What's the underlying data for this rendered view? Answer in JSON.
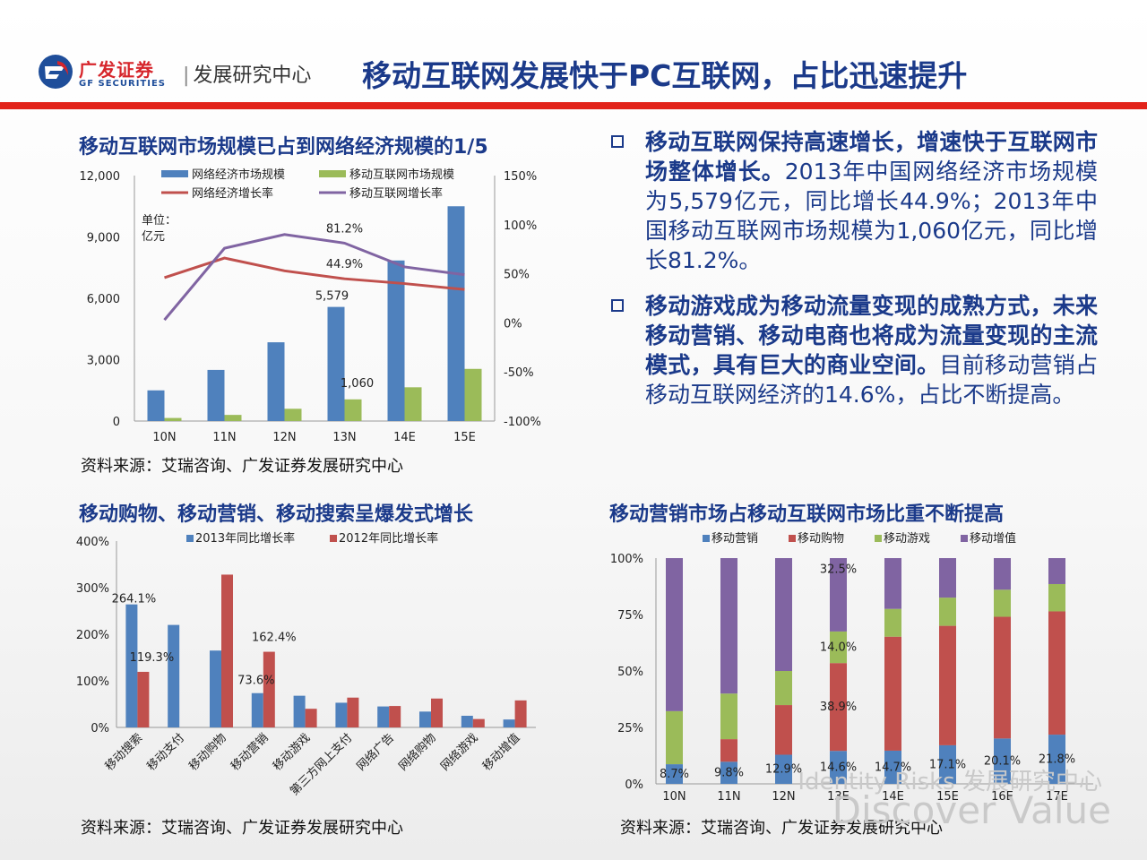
{
  "header": {
    "logo_cn": "广发证券",
    "logo_en": "GF SECURITIES",
    "dept": "发展研究中心",
    "title": "移动互联网发展快于PC互联网，占比迅速提升"
  },
  "colors": {
    "blue": "#4f81bd",
    "red": "#c0504d",
    "green": "#9bbb59",
    "purple": "#8064a2",
    "navy": "#1b3a8a",
    "brand_red": "#e2231a"
  },
  "chart1_title": "移动互联网市场规模已占到网络经济规模的1/5",
  "chart1_source": "资料来源：艾瑞咨询、广发证券发展研究中心",
  "chart2_title": "移动购物、移动营销、移动搜索呈爆发式增长",
  "chart2_source": "资料来源：艾瑞咨询、广发证券发展研究中心",
  "chart3_title": "移动营销市场占移动互联网市场比重不断提高",
  "chart3_source": "资料来源：艾瑞咨询、广发证券发展研究中心",
  "bullets": [
    {
      "bold": "移动互联网保持高速增长，增速快于互联网市场整体增长。",
      "text": "2013年中国网络经济市场规模为5,579亿元，同比增长44.9%；2013年中国移动互联网市场规模为1,060亿元，同比增长81.2%。"
    },
    {
      "bold": "移动游戏成为移动流量变现的成熟方式，未来移动营销、移动电商也将成为流量变现的主流模式，具有巨大的商业空间。",
      "text": "目前移动营销占移动互联网经济的14.6%，占比不断提高。"
    }
  ],
  "watermark": {
    "line1": "Identity Risks 发展研究中心",
    "line2": "Discover Value"
  },
  "chart_data": [
    {
      "type": "bar",
      "categories": [
        "10N",
        "11N",
        "12N",
        "13N",
        "14E",
        "15E"
      ],
      "unit_label": "单位：\n亿元",
      "yticks": [
        "12,000",
        "9,000",
        "6,000",
        "3,000",
        "0"
      ],
      "ylim": [
        0,
        12000
      ],
      "y2ticks": [
        "150%",
        "100%",
        "50%",
        "0%",
        "-50%",
        "-100%"
      ],
      "y2lim": [
        -100,
        150
      ],
      "legend": "top",
      "series": [
        {
          "name": "网络经济市场规模",
          "kind": "bar",
          "axis": "left",
          "values": [
            1500,
            2500,
            3850,
            5579,
            7850,
            10500
          ]
        },
        {
          "name": "移动互联网市场规模",
          "kind": "bar",
          "axis": "left",
          "values": [
            150,
            300,
            600,
            1060,
            1650,
            2550
          ]
        },
        {
          "name": "网络经济增长率",
          "kind": "line",
          "axis": "right",
          "values": [
            46,
            66,
            53,
            44.9,
            40,
            34
          ]
        },
        {
          "name": "移动互联网增长率",
          "kind": "line",
          "axis": "right",
          "values": [
            3,
            76,
            90,
            81.2,
            57,
            49
          ]
        }
      ],
      "data_labels": [
        "5,579",
        "1,060",
        "81.2%",
        "44.9%"
      ]
    },
    {
      "type": "bar",
      "categories": [
        "移动搜索",
        "移动支付",
        "移动购物",
        "移动营销",
        "移动游戏",
        "第三方网上支付",
        "网络广告",
        "网络购物",
        "网络游戏",
        "移动增值"
      ],
      "yticks": [
        "400%",
        "300%",
        "200%",
        "100%",
        "0%"
      ],
      "ylim": [
        0,
        400
      ],
      "legend": "top",
      "series": [
        {
          "name": "2013年同比增长率",
          "values": [
            264.1,
            220,
            165,
            73.6,
            68,
            53,
            45,
            34,
            25,
            17
          ]
        },
        {
          "name": "2012年同比增长率",
          "values": [
            119.3,
            0,
            328,
            162.4,
            40,
            64,
            46,
            62,
            18,
            58
          ]
        }
      ],
      "data_labels": [
        "264.1%",
        "119.3%",
        "73.6%",
        "162.4%"
      ]
    },
    {
      "type": "bar",
      "stacked": true,
      "categories": [
        "10N",
        "11N",
        "12N",
        "13E",
        "14E",
        "15E",
        "16E",
        "17E"
      ],
      "yticks": [
        "100%",
        "75%",
        "50%",
        "25%",
        "0%"
      ],
      "ylim": [
        0,
        100
      ],
      "legend": "top",
      "series": [
        {
          "name": "移动营销",
          "values": [
            8.7,
            9.8,
            12.9,
            14.6,
            14.7,
            17.1,
            20.1,
            21.8
          ]
        },
        {
          "name": "移动购物",
          "values": [
            0,
            10,
            22,
            38.9,
            50.5,
            52.9,
            53.9,
            54.6
          ]
        },
        {
          "name": "移动游戏",
          "values": [
            23.5,
            20.2,
            15.1,
            14.0,
            12.3,
            12.5,
            12.0,
            12.1
          ]
        },
        {
          "name": "移动增值",
          "values": [
            67.8,
            60,
            50,
            32.5,
            22.5,
            17.5,
            14.0,
            11.5
          ]
        }
      ],
      "data_labels": [
        "8.7%",
        "9.8%",
        "12.9%",
        "14.6%",
        "14.7%",
        "17.1%",
        "20.1%",
        "21.8%",
        "38.9%",
        "14.0%",
        "32.5%"
      ]
    }
  ]
}
